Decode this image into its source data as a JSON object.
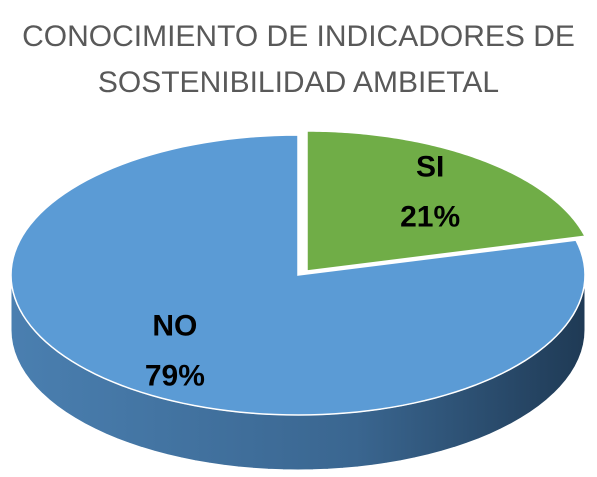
{
  "chart_data": {
    "type": "pie",
    "title": "CONOCIMIENTO DE INDICADORES DE SOSTENIBILIDAD AMBIETAL",
    "categories": [
      "SI",
      "NO"
    ],
    "values": [
      21,
      79
    ],
    "value_labels": [
      "21%",
      "79%"
    ],
    "colors": [
      "#70ad47",
      "#5b9bd5"
    ]
  }
}
